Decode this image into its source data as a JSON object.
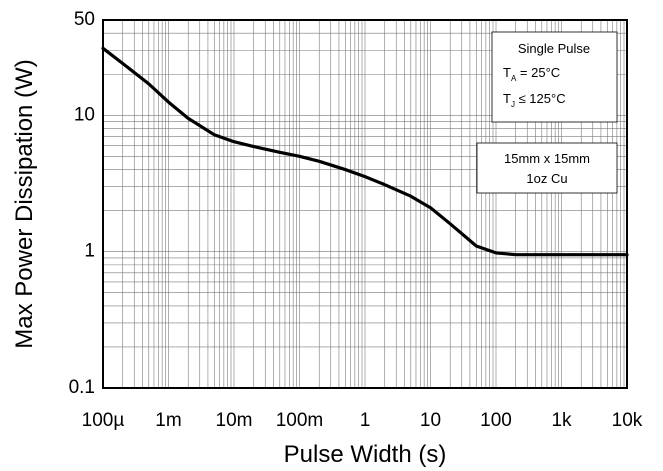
{
  "chart_data": {
    "type": "line",
    "title": "",
    "xlabel": "Pulse Width (s)",
    "ylabel": "Max Power Dissipation (W)",
    "x_scale": "log",
    "y_scale": "log",
    "xlim": [
      0.0001,
      10000
    ],
    "ylim": [
      0.1,
      50
    ],
    "grid": true,
    "x_ticks": [
      {
        "value": 0.0001,
        "label": "100µ"
      },
      {
        "value": 0.001,
        "label": "1m"
      },
      {
        "value": 0.01,
        "label": "10m"
      },
      {
        "value": 0.1,
        "label": "100m"
      },
      {
        "value": 1,
        "label": "1"
      },
      {
        "value": 10,
        "label": "10"
      },
      {
        "value": 100,
        "label": "100"
      },
      {
        "value": 1000,
        "label": "1k"
      },
      {
        "value": 10000,
        "label": "10k"
      }
    ],
    "y_ticks": [
      {
        "value": 0.1,
        "label": "0.1"
      },
      {
        "value": 1,
        "label": "1"
      },
      {
        "value": 10,
        "label": "10"
      },
      {
        "value": 50,
        "label": "50"
      }
    ],
    "series": [
      {
        "color": "#000000",
        "x": [
          0.0001,
          0.0002,
          0.0005,
          0.001,
          0.002,
          0.005,
          0.01,
          0.02,
          0.05,
          0.1,
          0.2,
          0.5,
          1,
          2,
          5,
          10,
          20,
          50,
          100,
          200,
          500,
          1000,
          2000,
          5000,
          10000
        ],
        "y": [
          31,
          24,
          17,
          12.5,
          9.5,
          7.2,
          6.4,
          5.9,
          5.35,
          5.0,
          4.6,
          4.0,
          3.55,
          3.1,
          2.55,
          2.1,
          1.6,
          1.1,
          0.98,
          0.95,
          0.95,
          0.95,
          0.95,
          0.95,
          0.95
        ]
      }
    ],
    "annotations": [
      {
        "lines": [
          {
            "text": "Single Pulse"
          },
          {
            "text": "T",
            "sub": "A",
            "rest": " = 25°C"
          },
          {
            "text": "T",
            "sub": "J",
            "rest": " ≤ 125°C"
          }
        ]
      },
      {
        "lines": [
          {
            "text": "15mm x 15mm"
          },
          {
            "text": "1oz Cu"
          }
        ]
      }
    ]
  }
}
